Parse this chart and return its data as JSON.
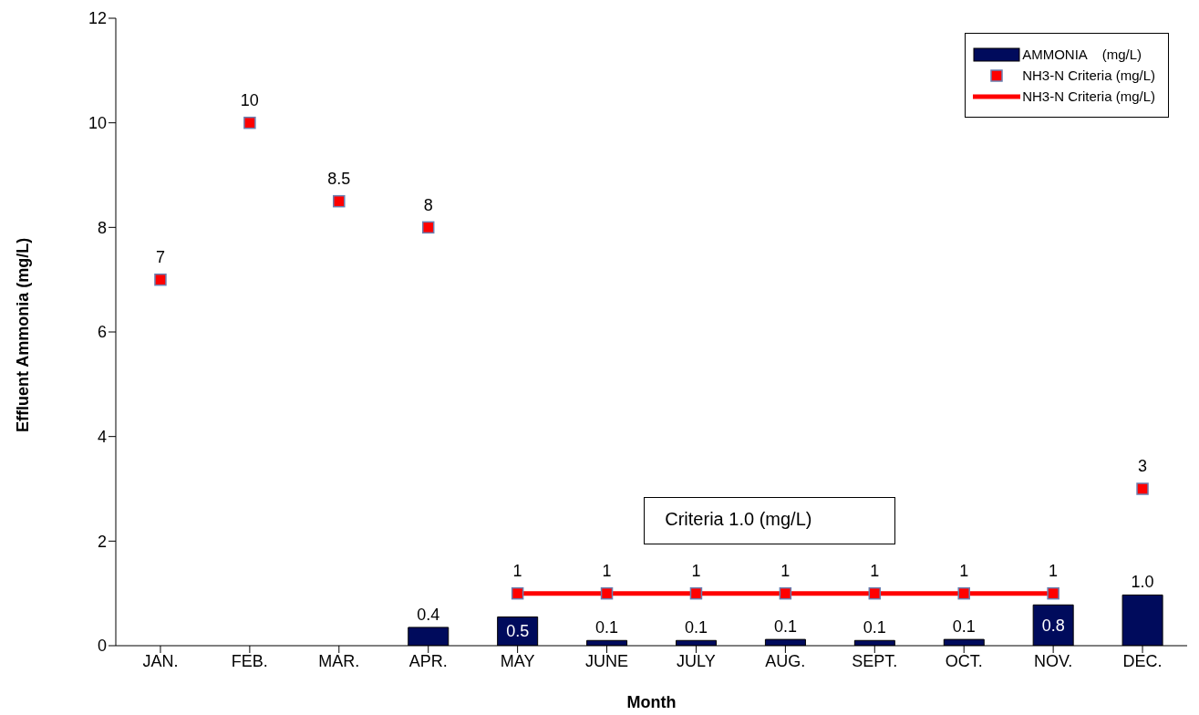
{
  "chart_data": {
    "type": "line",
    "xlabel": "Month",
    "ylabel": "Effluent Ammonia (mg/L)",
    "categories": [
      "JAN.",
      "FEB.",
      "MAR.",
      "APR.",
      "MAY",
      "JUNE",
      "JULY",
      "AUG.",
      "SEPT.",
      "OCT.",
      "NOV.",
      "DEC."
    ],
    "series": [
      {
        "name": "AMMONIA    (mg/L)",
        "type": "bar",
        "color": "#000b5c",
        "values": [
          null,
          null,
          null,
          0.35,
          0.55,
          0.1,
          0.1,
          0.12,
          0.1,
          0.12,
          0.78,
          0.97
        ],
        "value_labels": [
          null,
          null,
          null,
          "0.4",
          "0.5",
          "0.1",
          "0.1",
          "0.1",
          "0.1",
          "0.1",
          "0.8",
          "1.0"
        ]
      },
      {
        "name": "NH3-N Criteria (mg/L)",
        "type": "scatter",
        "marker": "square",
        "color": "#ff0000",
        "values": [
          7,
          10,
          8.5,
          8,
          1,
          1,
          1,
          1,
          1,
          1,
          1,
          3
        ],
        "value_labels": [
          "7",
          "10",
          "8.5",
          "8",
          "1",
          "1",
          "1",
          "1",
          "1",
          "1",
          "1",
          "3"
        ]
      },
      {
        "name": "NH3-N Criteria (mg/L)",
        "color": "#ff0000",
        "values": [
          null,
          null,
          null,
          null,
          1,
          1,
          1,
          1,
          1,
          1,
          1,
          null
        ]
      }
    ],
    "annotations": [
      "Criteria 1.0 (mg/L)"
    ],
    "ylim": [
      0,
      12
    ],
    "yticks": [
      0,
      2,
      4,
      6,
      8,
      10,
      12
    ],
    "grid": false,
    "legend": "top right"
  }
}
